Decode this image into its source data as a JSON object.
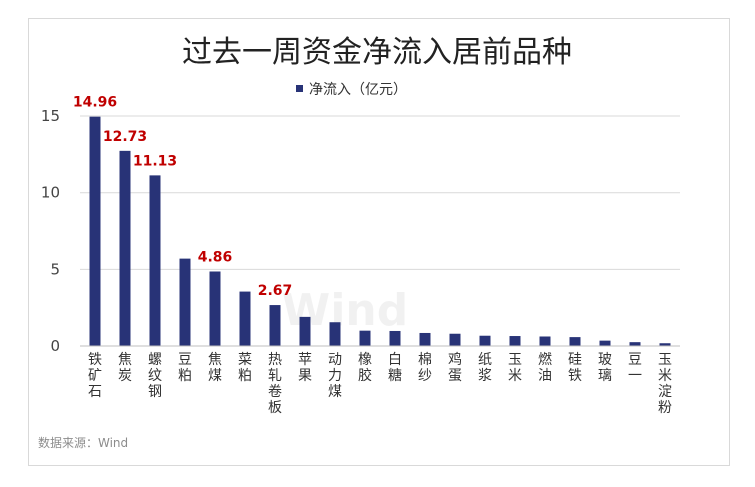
{
  "chart_data": {
    "type": "bar",
    "title": "过去一周资金净流入居前品种",
    "series": [
      {
        "name": "净流入（亿元）",
        "values": [
          14.96,
          12.73,
          11.13,
          5.7,
          4.86,
          3.55,
          2.67,
          1.9,
          1.55,
          1.0,
          0.98,
          0.85,
          0.8,
          0.67,
          0.65,
          0.62,
          0.58,
          0.35,
          0.25,
          0.18
        ]
      }
    ],
    "categories": [
      "铁矿石",
      "焦炭",
      "螺纹钢",
      "豆粕",
      "焦煤",
      "菜粕",
      "热轧卷板",
      "苹果",
      "动力煤",
      "橡胶",
      "白糖",
      "棉纱",
      "鸡蛋",
      "纸浆",
      "玉米",
      "燃油",
      "硅铁",
      "玻璃",
      "豆一",
      "玉米淀粉"
    ],
    "data_labels": [
      "14.96",
      "12.73",
      "11.13",
      "",
      "4.86",
      "",
      "2.67",
      "",
      "",
      "",
      "",
      "",
      "",
      "",
      "",
      "",
      "",
      "",
      "",
      ""
    ],
    "yticks": [
      "0",
      "5",
      "10",
      "15"
    ],
    "ylim": [
      0,
      17
    ],
    "legend": "top-center",
    "grid": true,
    "bar_color": "#283377",
    "label_color": "#c00000",
    "source": "数据来源：Wind",
    "watermark": "Wind"
  }
}
